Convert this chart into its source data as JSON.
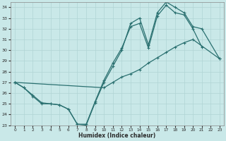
{
  "xlabel": "Humidex (Indice chaleur)",
  "xlim": [
    -0.5,
    23.5
  ],
  "ylim": [
    23,
    34.5
  ],
  "yticks": [
    23,
    24,
    25,
    26,
    27,
    28,
    29,
    30,
    31,
    32,
    33,
    34
  ],
  "xticks": [
    0,
    1,
    2,
    3,
    4,
    5,
    6,
    7,
    8,
    9,
    10,
    11,
    12,
    13,
    14,
    15,
    16,
    17,
    18,
    19,
    20,
    21,
    22,
    23
  ],
  "bg_color": "#c9e8e8",
  "line_color": "#2a7070",
  "grid_color": "#b0d4d4",
  "line1_x": [
    0,
    1,
    2,
    3,
    4,
    5,
    6,
    7,
    8,
    9,
    10,
    11,
    12,
    13,
    14,
    15,
    16,
    17,
    18,
    19,
    20,
    21
  ],
  "line1_y": [
    27.0,
    26.5,
    25.8,
    25.1,
    25.0,
    24.9,
    24.5,
    23.1,
    23.1,
    25.2,
    27.2,
    28.8,
    30.2,
    32.2,
    32.5,
    30.2,
    33.2,
    34.2,
    33.5,
    33.3,
    32.0,
    30.3
  ],
  "line2_x": [
    0,
    1,
    2,
    3,
    4,
    5,
    6,
    7,
    8,
    9,
    10,
    11,
    12,
    13,
    14,
    15,
    16,
    17,
    18,
    19,
    20,
    21,
    23
  ],
  "line2_y": [
    27.0,
    26.5,
    25.7,
    25.0,
    25.0,
    24.9,
    24.5,
    23.1,
    23.0,
    25.1,
    27.0,
    28.5,
    30.0,
    32.5,
    33.0,
    30.5,
    33.5,
    34.5,
    34.0,
    33.5,
    32.2,
    32.0,
    29.2
  ],
  "line3_x": [
    0,
    10,
    11,
    12,
    13,
    14,
    15,
    16,
    17,
    18,
    19,
    20,
    23
  ],
  "line3_y": [
    27.0,
    26.5,
    27.0,
    27.5,
    27.8,
    28.2,
    28.8,
    29.3,
    29.8,
    30.3,
    30.7,
    31.0,
    29.2
  ]
}
